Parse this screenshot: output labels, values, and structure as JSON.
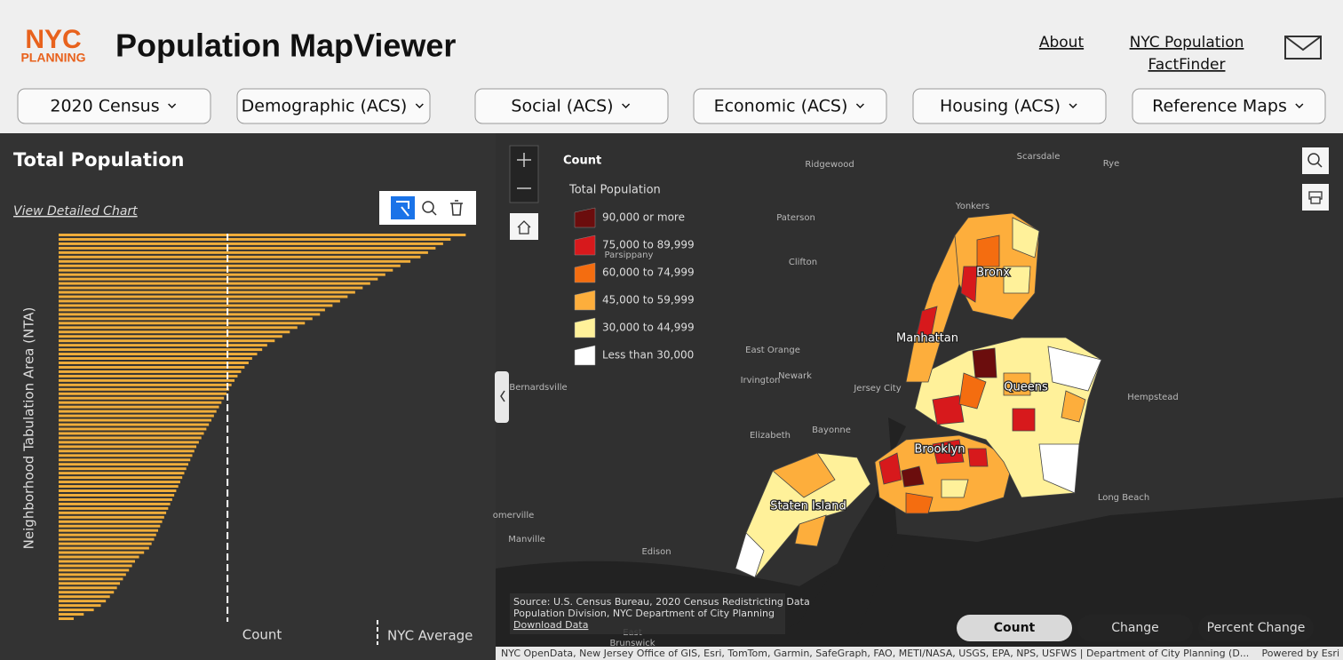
{
  "header": {
    "logo_top": "NYC",
    "logo_bottom": "PLANNING",
    "title": "Population MapViewer",
    "about": "About",
    "factfinder": [
      "NYC Population",
      "FactFinder"
    ]
  },
  "nav": [
    "2020 Census",
    "Demographic (ACS)",
    "Social (ACS)",
    "Economic (ACS)",
    "Housing (ACS)",
    "Reference Maps"
  ],
  "panel": {
    "title": "Total Population",
    "link": "View Detailed Chart"
  },
  "chart_data": {
    "type": "bar",
    "orientation": "horizontal",
    "y_label": "Neighborhood Tabulation Area (NTA)",
    "x_label": "Count",
    "average_label": "NYC Average",
    "average": 33600,
    "color": "#f0ad3a",
    "xlim": [
      0,
      82000
    ],
    "values": [
      81000,
      78000,
      76500,
      75000,
      73500,
      72000,
      70000,
      68000,
      66500,
      65000,
      63500,
      62000,
      60500,
      59000,
      57500,
      56000,
      54500,
      53000,
      52000,
      50500,
      49000,
      47500,
      46000,
      44500,
      43000,
      41500,
      40500,
      39500,
      38500,
      37800,
      37000,
      36300,
      35600,
      35000,
      34400,
      33900,
      33400,
      32900,
      32400,
      31900,
      31400,
      30900,
      30400,
      29900,
      29400,
      28900,
      28400,
      27900,
      27400,
      27000,
      26600,
      26200,
      25800,
      25400,
      25000,
      24600,
      24200,
      23800,
      23400,
      23000,
      22600,
      22200,
      21800,
      21400,
      21000,
      20600,
      20200,
      19800,
      19400,
      19000,
      18500,
      18000,
      17000,
      16000,
      15200,
      14600,
      14000,
      13400,
      12800,
      12200,
      11600,
      11000,
      10200,
      9400,
      8400,
      7000,
      5000,
      3000
    ]
  },
  "map": {
    "legend_title": "Count",
    "legend_subtitle": "Total Population",
    "legend": [
      {
        "label": "90,000 or more",
        "color": "#6b0d0d"
      },
      {
        "label": "75,000 to 89,999",
        "color": "#d7191c"
      },
      {
        "label": "60,000 to 74,999",
        "color": "#f46d10"
      },
      {
        "label": "45,000 to 59,999",
        "color": "#fdae3c"
      },
      {
        "label": "30,000 to 44,999",
        "color": "#fff19a"
      },
      {
        "label": "Less than 30,000",
        "color": "#ffffff"
      }
    ],
    "places": [
      "Ridgewood",
      "Scarsdale",
      "Rye",
      "Paterson",
      "Yonkers",
      "Clifton",
      "Parsippany",
      "Bronx",
      "Manhattan",
      "East Orange",
      "Newark",
      "Irvington",
      "Jersey City",
      "Queens",
      "Bernardsville",
      "Hempstead",
      "Brooklyn",
      "Elizabeth",
      "Bayonne",
      "Staten Island",
      "Long Beach",
      "omerville",
      "Manville",
      "Edison",
      "East",
      "Brunswick"
    ],
    "source": [
      "Source: U.S. Census Bureau, 2020 Census Redistricting Data",
      "Population Division, NYC Department of City Planning"
    ],
    "download": "Download Data",
    "modes": [
      "Count",
      "Change",
      "Percent Change"
    ],
    "attribution": "NYC OpenData, New Jersey Office of GIS, Esri, TomTom, Garmin, SafeGraph, FAO, METI/NASA, USGS, EPA, NPS, USFWS | Department of City Planning (D...",
    "powered": "Powered by Esri"
  }
}
